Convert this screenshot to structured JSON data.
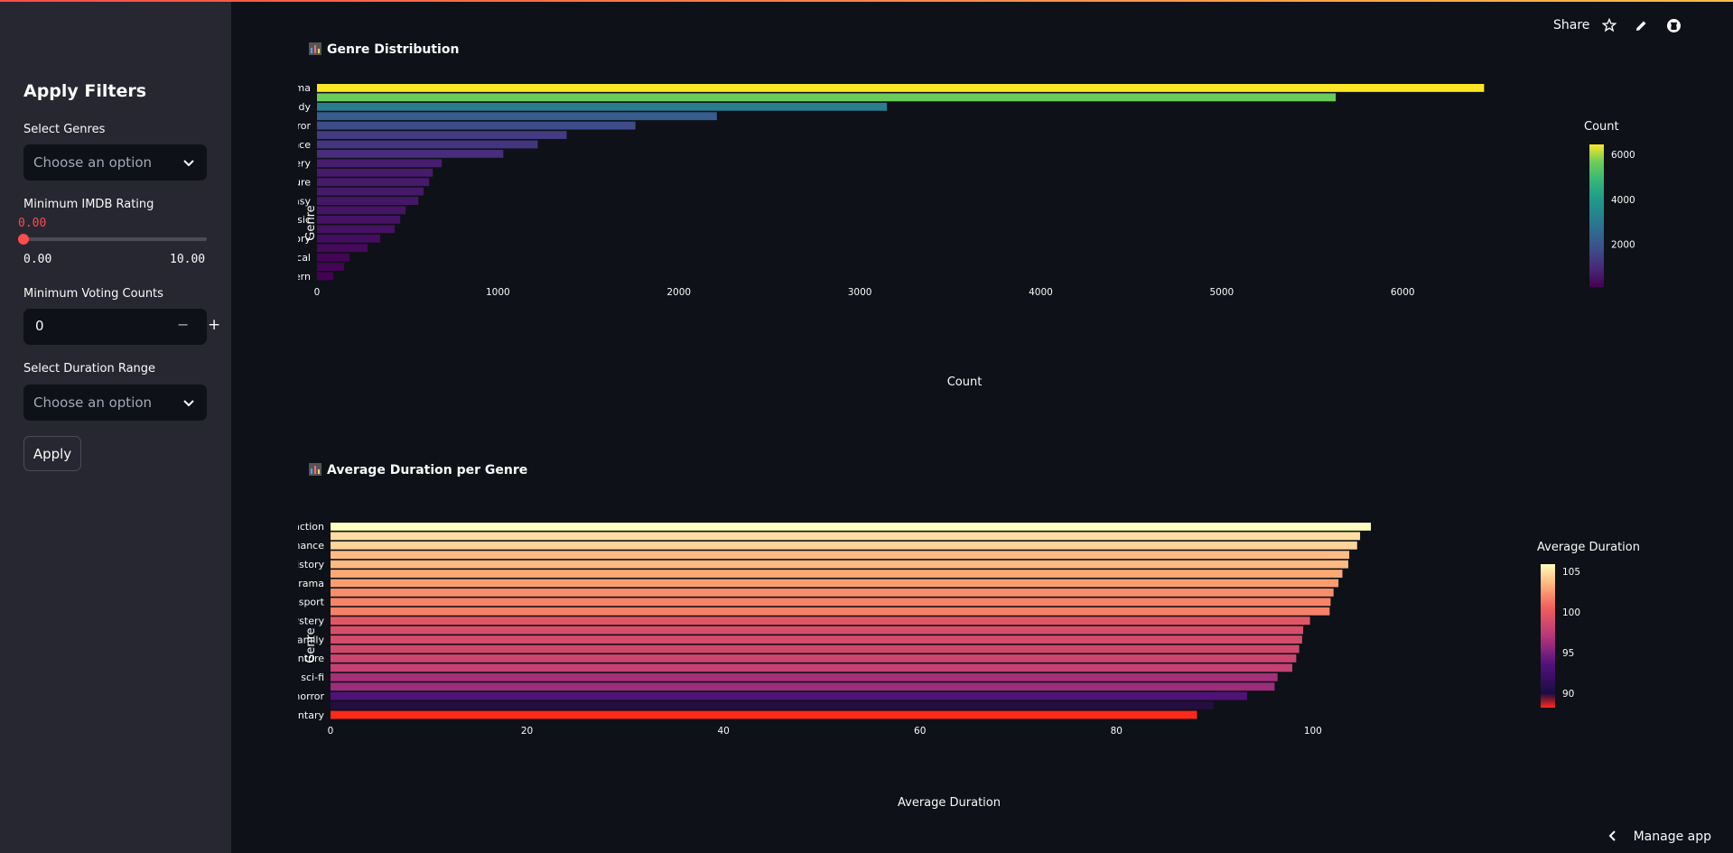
{
  "sidebar": {
    "title": "Apply Filters",
    "genres_label": "Select Genres",
    "genres_placeholder": "Choose an option",
    "rating_label": "Minimum IMDB Rating",
    "rating_value": "0.00",
    "rating_min": "0.00",
    "rating_max": "10.00",
    "votes_label": "Minimum Voting Counts",
    "votes_value": "0",
    "votes_minus": "−",
    "votes_plus": "+",
    "duration_label": "Select Duration Range",
    "duration_placeholder": "Choose an option",
    "apply_label": "Apply"
  },
  "toolbar": {
    "share_label": "Share",
    "icons": [
      "star-icon",
      "edit-icon",
      "github-icon"
    ]
  },
  "manage_app_label": "Manage app",
  "sections": [
    {
      "title": "Genre Distribution"
    },
    {
      "title": "Average Duration per Genre"
    }
  ],
  "chart_data": [
    {
      "type": "bar",
      "orientation": "horizontal",
      "title": "Genre Distribution",
      "xlabel": "Count",
      "ylabel": "Genre",
      "xlim": [
        0,
        6700
      ],
      "x_ticks": [
        "0",
        "1000",
        "2000",
        "3000",
        "4000",
        "5000",
        "6000"
      ],
      "y_tick_labels": [
        "drama",
        "comedy",
        "horror",
        "romance",
        "mystery",
        "adventure",
        "fantasy",
        "music",
        "history",
        "musical",
        "western"
      ],
      "categories": [
        "drama",
        "",
        "comedy",
        "",
        "horror",
        "",
        "romance",
        "",
        "mystery",
        "",
        "adventure",
        "",
        "fantasy",
        "",
        "music",
        "",
        "history",
        "",
        "musical",
        "",
        "western"
      ],
      "values": [
        6450,
        5630,
        3150,
        2210,
        1760,
        1380,
        1220,
        1030,
        690,
        640,
        620,
        590,
        560,
        490,
        460,
        430,
        350,
        280,
        180,
        150,
        90
      ],
      "colorbar": {
        "title": "Count",
        "ticks": [
          "2000",
          "4000",
          "6000"
        ],
        "colorscale": "viridis",
        "range": [
          90,
          6450
        ]
      }
    },
    {
      "type": "bar",
      "orientation": "horizontal",
      "title": "Average Duration per Genre",
      "xlabel": "Average Duration",
      "ylabel": "Genre",
      "xlim": [
        0,
        107
      ],
      "x_ticks": [
        "0",
        "20",
        "40",
        "60",
        "80",
        "100"
      ],
      "y_tick_labels": [
        "action",
        "romance",
        "history",
        "drama",
        "sport",
        "mystery",
        "family",
        "adventure",
        "sci-fi",
        "horror",
        "documentary"
      ],
      "categories": [
        "action",
        "",
        "romance",
        "",
        "history",
        "",
        "drama",
        "",
        "sport",
        "",
        "mystery",
        "",
        "family",
        "",
        "adventure",
        "",
        "sci-fi",
        "",
        "horror",
        "",
        "documentary"
      ],
      "values": [
        105.9,
        104.8,
        104.5,
        103.7,
        103.6,
        103.0,
        102.6,
        102.1,
        101.8,
        101.7,
        99.7,
        99.0,
        98.9,
        98.6,
        98.3,
        97.9,
        96.4,
        96.1,
        93.3,
        89.9,
        88.2
      ],
      "colorbar": {
        "title": "Average Duration",
        "ticks": [
          "90",
          "95",
          "100",
          "105"
        ],
        "colorscale": "magma-red",
        "range": [
          88.2,
          105.9
        ]
      }
    }
  ]
}
